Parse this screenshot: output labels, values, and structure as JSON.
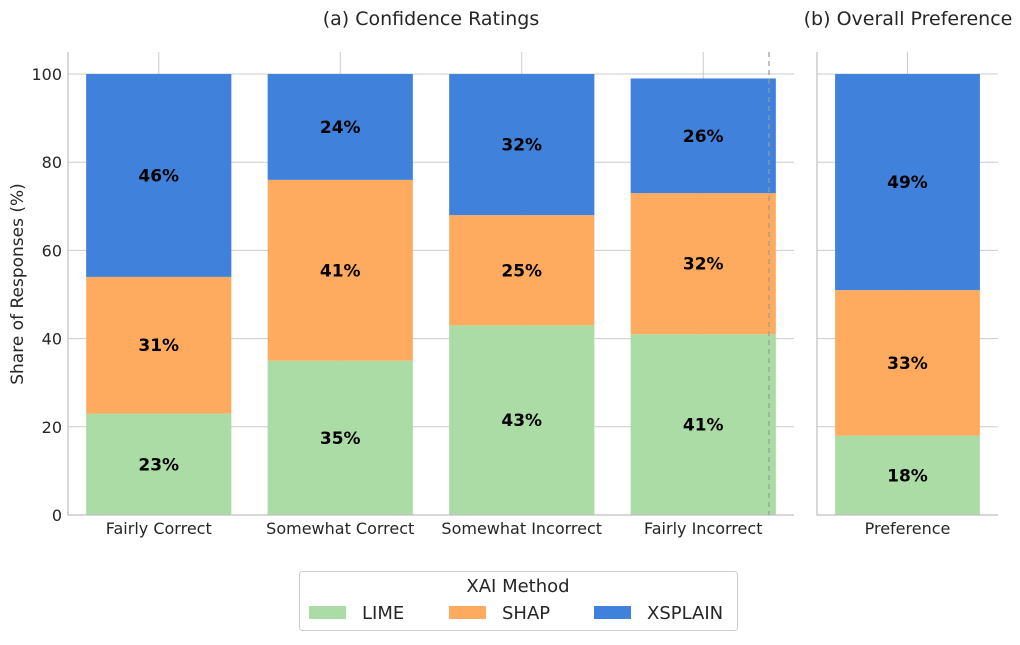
{
  "chart_data": [
    {
      "type": "bar",
      "stacked": true,
      "title": "(a) Confidence Ratings",
      "ylabel": "Share of Responses (%)",
      "ylim": [
        0,
        105
      ],
      "yticks": [
        0,
        20,
        40,
        60,
        80,
        100
      ],
      "grid": true,
      "categories": [
        "Fairly Correct",
        "Somewhat Correct",
        "Somewhat Incorrect",
        "Fairly Incorrect"
      ],
      "series": [
        {
          "name": "LIME",
          "color": "#abdca5",
          "values": [
            23,
            35,
            43,
            41
          ],
          "labels": [
            "23%",
            "35%",
            "43%",
            "41%"
          ]
        },
        {
          "name": "SHAP",
          "color": "#feab60",
          "values": [
            31,
            41,
            25,
            32
          ],
          "labels": [
            "31%",
            "41%",
            "25%",
            "32%"
          ]
        },
        {
          "name": "XSPLAIN",
          "color": "#3f81db",
          "values": [
            46,
            24,
            32,
            26
          ],
          "labels": [
            "46%",
            "24%",
            "32%",
            "26%"
          ]
        }
      ]
    },
    {
      "type": "bar",
      "stacked": true,
      "title": "(b) Overall Preference",
      "ylim": [
        0,
        105
      ],
      "grid": true,
      "categories": [
        "Preference"
      ],
      "series": [
        {
          "name": "LIME",
          "color": "#abdca5",
          "values": [
            18
          ],
          "labels": [
            "18%"
          ]
        },
        {
          "name": "SHAP",
          "color": "#feab60",
          "values": [
            33
          ],
          "labels": [
            "33%"
          ]
        },
        {
          "name": "XSPLAIN",
          "color": "#3f81db",
          "values": [
            49
          ],
          "labels": [
            "49%"
          ]
        }
      ]
    }
  ],
  "legend": {
    "title": "XAI Method",
    "position": "bottom-center",
    "entries": [
      {
        "label": "LIME",
        "color": "#abdca5"
      },
      {
        "label": "SHAP",
        "color": "#feab60"
      },
      {
        "label": "XSPLAIN",
        "color": "#3f81db"
      }
    ]
  }
}
